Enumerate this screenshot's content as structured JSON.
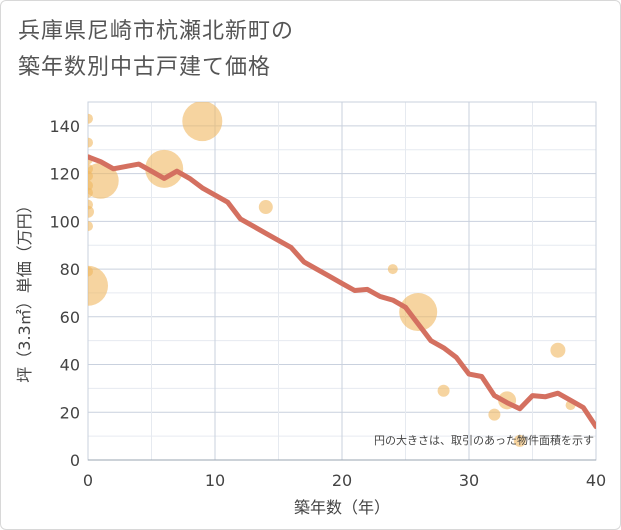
{
  "title_lines": [
    "兵庫県尼崎市杭瀬北新町の",
    "築年数別中古戸建て価格"
  ],
  "colors": {
    "line": "#d47060",
    "bubble": "#f0b860",
    "grid": "#c9d1de",
    "axis_text": "#444444"
  },
  "chart_data": {
    "type": "scatter",
    "title": "兵庫県尼崎市杭瀬北新町の 築年数別中古戸建て価格",
    "xlabel": "築年数（年）",
    "ylabel": "坪（3.3㎡）単価（万円）",
    "xlim": [
      0,
      40
    ],
    "ylim": [
      0,
      150
    ],
    "xticks": [
      0,
      10,
      20,
      30,
      40
    ],
    "yticks": [
      0,
      20,
      40,
      60,
      80,
      100,
      120,
      140
    ],
    "annotation": "円の大きさは、取引のあった物件面積を示す",
    "trend_line": {
      "x": [
        0,
        1,
        2,
        3,
        4,
        5,
        6,
        7,
        8,
        9,
        10,
        11,
        12,
        13,
        14,
        15,
        16,
        17,
        18,
        19,
        20,
        21,
        22,
        23,
        24,
        25,
        26,
        27,
        28,
        29,
        30,
        31,
        32,
        33,
        34,
        35,
        36,
        37,
        38,
        39,
        40
      ],
      "y": [
        127,
        125,
        122,
        123,
        124,
        121,
        118,
        121,
        118,
        114,
        111,
        108,
        101,
        98,
        95,
        92,
        89,
        83,
        80,
        77,
        74,
        71,
        71.5,
        68.5,
        67,
        64,
        57,
        50,
        47,
        43,
        36,
        35,
        27,
        24,
        21.5,
        27,
        26.5,
        28,
        25,
        22,
        14
      ]
    },
    "points": [
      {
        "x": 0,
        "y": 143,
        "size": 1
      },
      {
        "x": 0,
        "y": 133,
        "size": 1
      },
      {
        "x": 0,
        "y": 126,
        "size": 1
      },
      {
        "x": 0,
        "y": 122,
        "size": 1
      },
      {
        "x": 0,
        "y": 119,
        "size": 1
      },
      {
        "x": 0,
        "y": 115,
        "size": 1
      },
      {
        "x": 0,
        "y": 112,
        "size": 1
      },
      {
        "x": 0,
        "y": 107,
        "size": 1
      },
      {
        "x": 0,
        "y": 104,
        "size": 1.2
      },
      {
        "x": 0,
        "y": 98,
        "size": 1
      },
      {
        "x": 0,
        "y": 79,
        "size": 1
      },
      {
        "x": 0,
        "y": 73,
        "size": 4
      },
      {
        "x": 1,
        "y": 117,
        "size": 3.6
      },
      {
        "x": 6,
        "y": 122,
        "size": 3.8
      },
      {
        "x": 9,
        "y": 142,
        "size": 4
      },
      {
        "x": 14,
        "y": 106,
        "size": 1.4
      },
      {
        "x": 24,
        "y": 80,
        "size": 1
      },
      {
        "x": 26,
        "y": 62,
        "size": 3.8
      },
      {
        "x": 28,
        "y": 29,
        "size": 1.2
      },
      {
        "x": 32,
        "y": 19,
        "size": 1.2
      },
      {
        "x": 33,
        "y": 25,
        "size": 1.8
      },
      {
        "x": 34,
        "y": 8,
        "size": 1.2
      },
      {
        "x": 37,
        "y": 46,
        "size": 1.5
      },
      {
        "x": 38,
        "y": 23,
        "size": 1
      }
    ]
  }
}
